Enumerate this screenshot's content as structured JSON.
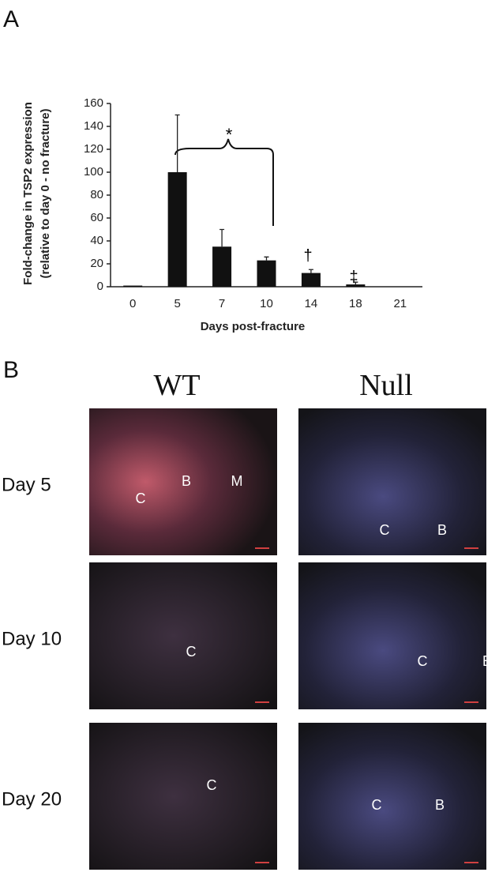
{
  "panel_labels": [
    "A",
    "B"
  ],
  "chart_data": {
    "type": "bar",
    "ylabel": [
      "Fold-change in TSP2 expression",
      "(relative to day 0 - no fracture)"
    ],
    "xlabel": "Days post-fracture",
    "categories": [
      "0",
      "5",
      "7",
      "10",
      "14",
      "18",
      "21"
    ],
    "values": [
      1,
      100,
      35,
      23,
      12,
      2,
      0
    ],
    "errors": [
      0,
      50,
      15,
      3,
      3,
      2,
      0
    ],
    "color": "#111111",
    "ylim": [
      0,
      160
    ],
    "yticks": [
      0,
      20,
      40,
      60,
      80,
      100,
      120,
      140,
      160
    ],
    "annotations": [
      "*",
      "†",
      "‡"
    ]
  },
  "panel_b": {
    "columns": [
      "WT",
      "Null"
    ],
    "rows": [
      "Day 5",
      "Day 10",
      "Day 20"
    ],
    "images": [
      [
        [
          "C",
          "B",
          "M"
        ],
        [
          "C",
          "B"
        ]
      ],
      [
        [
          "C"
        ],
        [
          "C",
          "B"
        ]
      ],
      [
        [
          "C"
        ],
        [
          "C",
          "B"
        ]
      ]
    ]
  }
}
